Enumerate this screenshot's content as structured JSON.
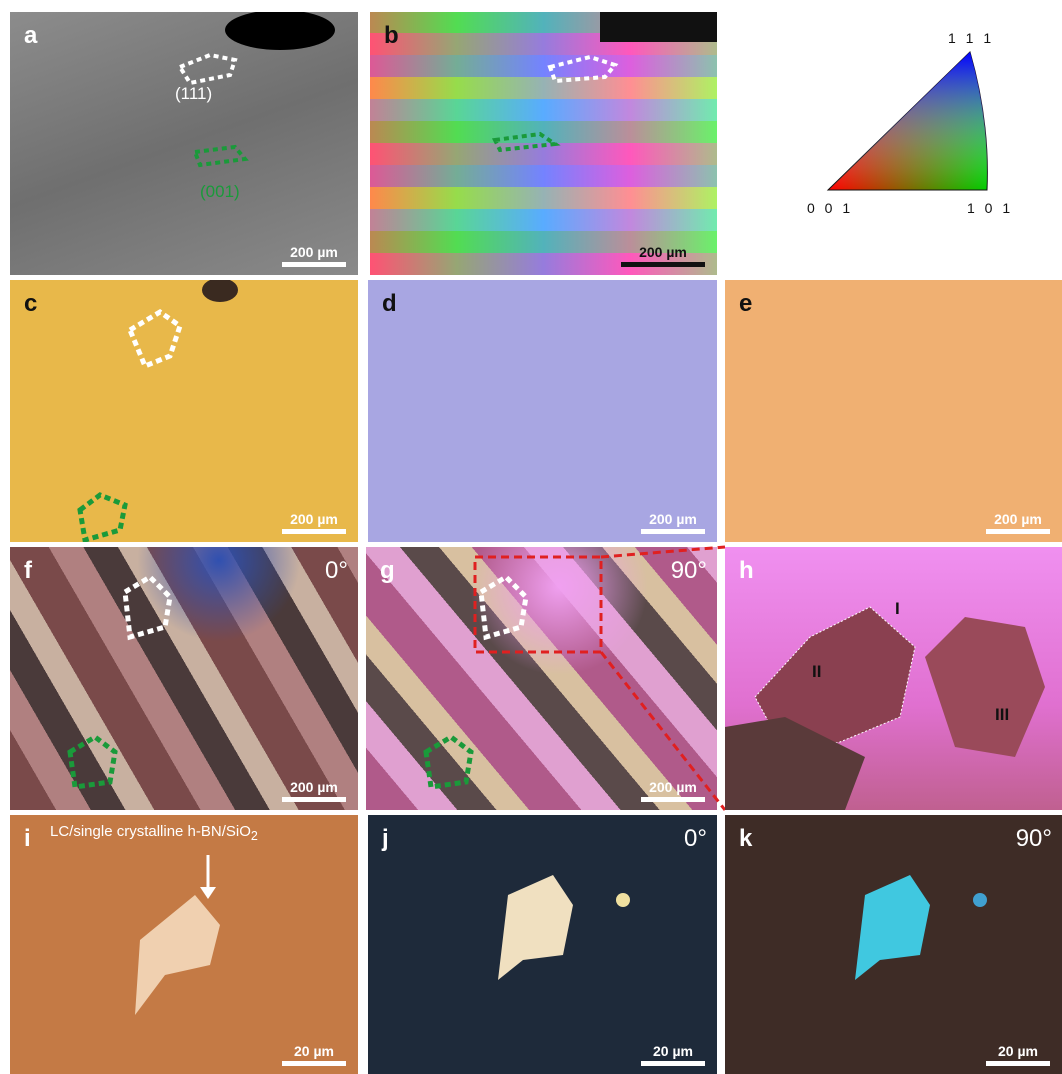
{
  "panels": [
    {
      "label": "a",
      "scale_bar": "200 µm",
      "annotations": [
        "(111)",
        "(001)"
      ]
    },
    {
      "label": "b",
      "scale_bar": "200 µm"
    },
    {
      "legend": {
        "top": "1 1 1",
        "left": "0 0 1",
        "right": "1 0 1"
      }
    },
    {
      "label": "c",
      "scale_bar": "200 µm"
    },
    {
      "label": "d",
      "scale_bar": "200 µm"
    },
    {
      "label": "e",
      "scale_bar": "200 µm"
    },
    {
      "label": "f",
      "angle": "0°",
      "scale_bar": "200 µm"
    },
    {
      "label": "g",
      "angle": "90°",
      "scale_bar": "200 µm"
    },
    {
      "label": "h",
      "regions": [
        "I",
        "II",
        "III"
      ]
    },
    {
      "label": "i",
      "annotation": "LC/single crystalline h-BN/SiO",
      "annotation_sub": "2",
      "scale_bar": "20 µm"
    },
    {
      "label": "j",
      "angle": "0°",
      "scale_bar": "20 µm"
    },
    {
      "label": "k",
      "angle": "90°",
      "scale_bar": "20 µm"
    }
  ]
}
